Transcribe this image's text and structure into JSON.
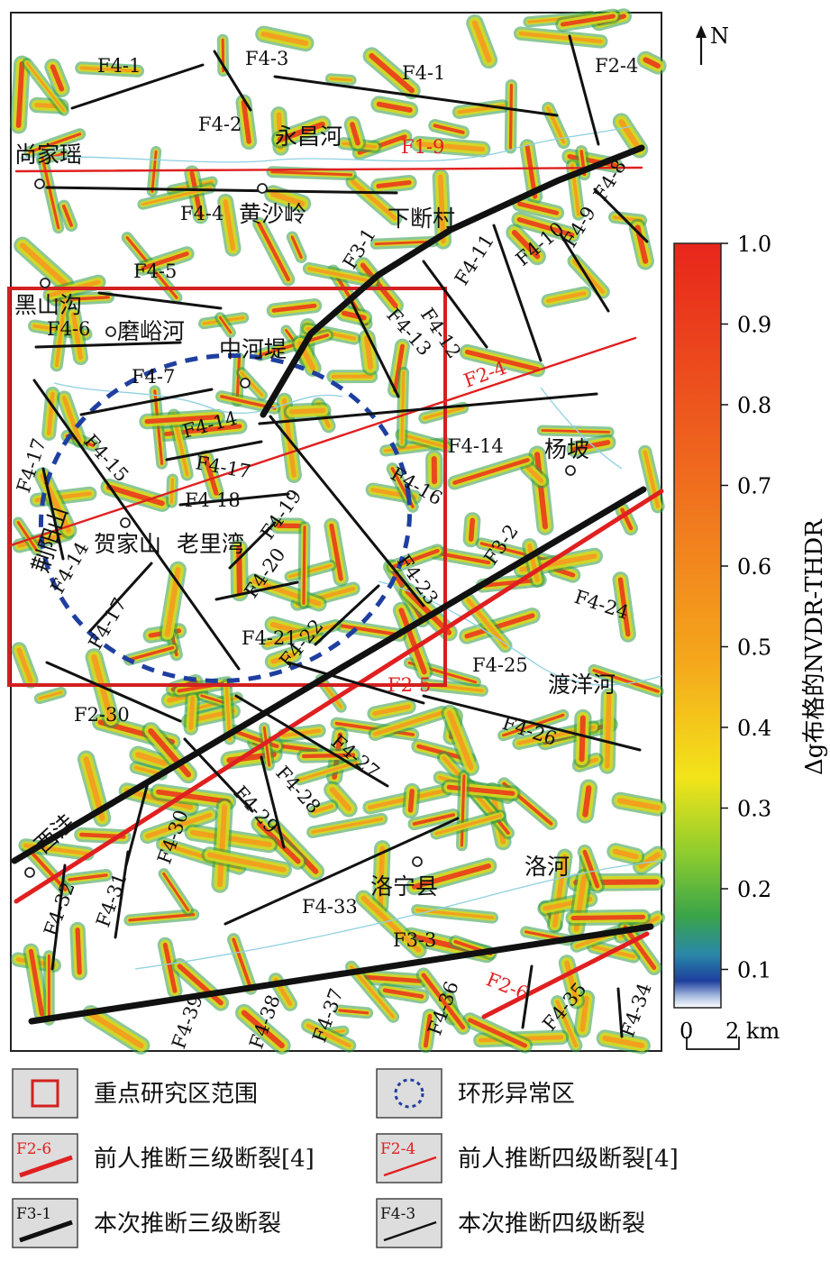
{
  "north_label": "N",
  "places": [
    "尚家瑶",
    "永昌河",
    "黄沙岭",
    "下断村",
    "黑山沟",
    "磨峪河",
    "中河堤",
    "杨坡",
    "荆阳山",
    "贺家山",
    "老里湾",
    "渡洋河",
    "西洼",
    "洛宁县",
    "洛河"
  ],
  "faults": {
    "f41a": "F4-1",
    "f43a": "F4-3",
    "f41b": "F4-1",
    "f24a": "F2-4",
    "f42": "F4-2",
    "f19": "F1-9",
    "f44": "F4-4",
    "f48": "F4-8",
    "f31": "F3-1",
    "f49": "F4-9",
    "f410": "F4-10",
    "f45": "F4-5",
    "f411": "F4-11",
    "f412": "F4-12",
    "f413": "F4-13",
    "f46": "F4-6",
    "f24b": "F2-4",
    "f47": "F4-7",
    "f414a": "F4-14",
    "f414b": "F4-14",
    "f415": "F4-15",
    "f417a": "F4-17",
    "f416": "F4-16",
    "f418": "F4-18",
    "f419": "F4-19",
    "f32": "F3-2",
    "f414c": "F4-14",
    "f420": "F4-20",
    "f423": "F4-23",
    "f424": "F4-24",
    "f417b": "F4-17",
    "f421": "F4-21",
    "f422": "F4-22",
    "f425": "F4-25",
    "f25": "F2-5",
    "f230": "F2-30",
    "f426": "F4-26",
    "f427": "F4-27",
    "f428": "F4-28",
    "f429": "F4-29",
    "f430": "F4-30",
    "f431": "F4-31",
    "f432": "F4-32",
    "f433": "F4-33",
    "f33": "F3-3",
    "f26": "F2-6",
    "f434": "F4-34",
    "f435": "F4-35",
    "f436": "F4-36",
    "f437": "F4-37",
    "f438": "F4-38",
    "f439": "F4-39"
  },
  "colorbar": {
    "title": "Δg布格的NVDR-THDR",
    "ticks": [
      "1.0",
      "0.9",
      "0.8",
      "0.7",
      "0.6",
      "0.5",
      "0.4",
      "0.3",
      "0.2",
      "0.1"
    ],
    "colors": [
      "#e8261c",
      "#ef5a1c",
      "#f3861c",
      "#f8b41a",
      "#f2e01a",
      "#a8d12a",
      "#4fae3a",
      "#2b8a9a",
      "#1d4ea6",
      "#ffffff"
    ]
  },
  "scale": {
    "zero": "0",
    "label": "2 km"
  },
  "legend": {
    "study_area": "重点研究区范围",
    "ring_anomaly": "环形异常区",
    "prev_f3_icon": "F2-6",
    "prev_f3": "前人推断三级断裂[4]",
    "prev_f4_icon": "F2-4",
    "prev_f4": "前人推断四级断裂[4]",
    "cur_f3_icon": "F3-1",
    "cur_f3": "本次推断三级断裂",
    "cur_f4_icon": "F4-3",
    "cur_f4": "本次推断四级断裂"
  },
  "colors": {
    "fault_black": "#111111",
    "fault_red": "#e02020",
    "study_box": "#d32020",
    "ring": "#1f3fa0",
    "river": "#8fd0e0"
  }
}
